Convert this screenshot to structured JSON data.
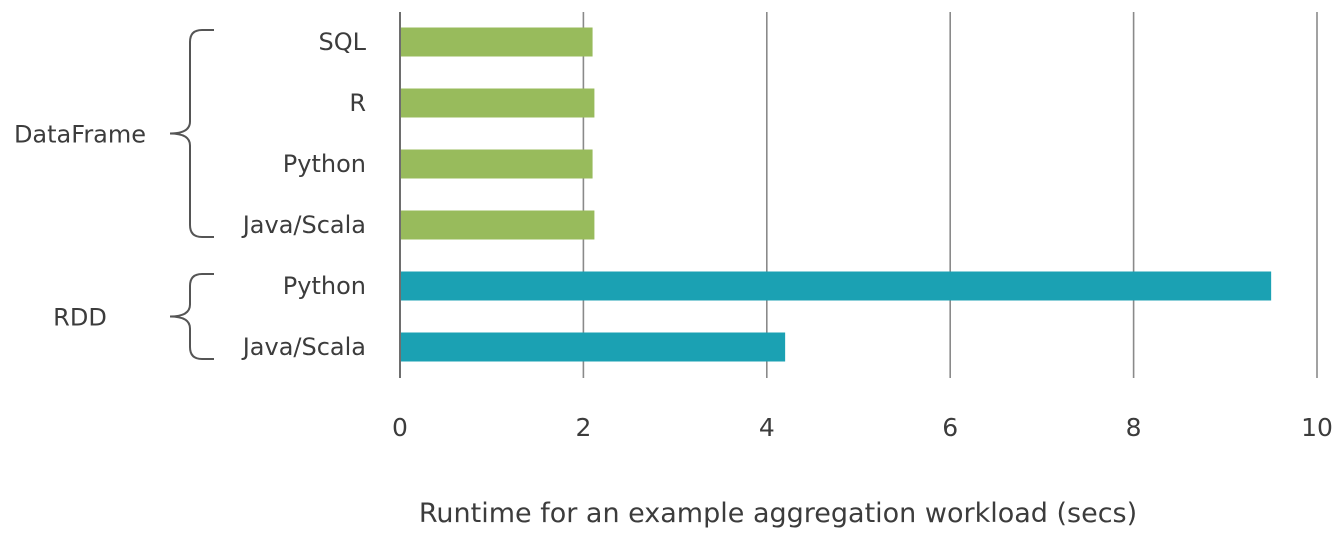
{
  "chart_data": {
    "type": "bar",
    "orientation": "horizontal",
    "xlabel": "Runtime for an example aggregation workload (secs)",
    "xlim": [
      0,
      10
    ],
    "x_ticks": [
      0,
      2,
      4,
      6,
      8,
      10
    ],
    "grid": true,
    "colors": {
      "DataFrame": "#98BB5C",
      "RDD": "#1BA1B3"
    },
    "groups": [
      {
        "name": "DataFrame",
        "bars": [
          {
            "label": "SQL",
            "value": 2.1
          },
          {
            "label": "R",
            "value": 2.12
          },
          {
            "label": "Python",
            "value": 2.1
          },
          {
            "label": "Java/Scala",
            "value": 2.12
          }
        ]
      },
      {
        "name": "RDD",
        "bars": [
          {
            "label": "Python",
            "value": 9.5
          },
          {
            "label": "Java/Scala",
            "value": 4.2
          }
        ]
      }
    ]
  }
}
